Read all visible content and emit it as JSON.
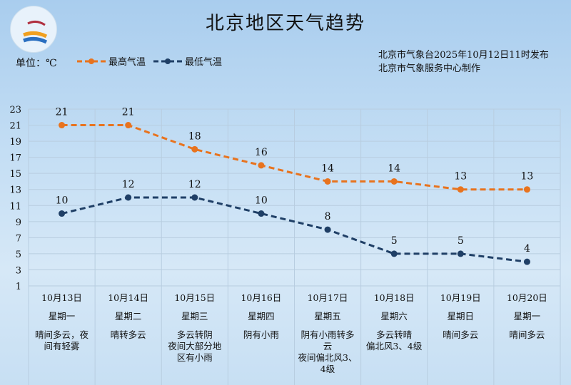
{
  "title": "北京地区天气趋势",
  "unit": "单位：℃",
  "publish": [
    "北京市气象台2025年10月12日11时发布",
    "北京市气象服务中心制作"
  ],
  "colors": {
    "high": "#e8731e",
    "low": "#1f3f66"
  },
  "chart_data": {
    "type": "line",
    "title": "北京地区天气趋势",
    "ylabel": "单位：℃",
    "ylim": [
      1,
      23
    ],
    "yticks": [
      1,
      3,
      5,
      7,
      9,
      11,
      13,
      15,
      17,
      19,
      21,
      23
    ],
    "grid": true,
    "legend": "top-left",
    "categories": [
      "10月13日",
      "10月14日",
      "10月15日",
      "10月16日",
      "10月17日",
      "10月18日",
      "10月19日",
      "10月20日"
    ],
    "series": [
      {
        "name": "最高气温",
        "values": [
          21,
          21,
          18,
          16,
          14,
          14,
          13,
          13
        ]
      },
      {
        "name": "最低气温",
        "values": [
          10,
          12,
          12,
          10,
          8,
          5,
          5,
          4
        ]
      }
    ]
  },
  "days": [
    {
      "date": "10月13日",
      "week": "星期一",
      "cond": "晴间多云，夜间有轻雾"
    },
    {
      "date": "10月14日",
      "week": "星期二",
      "cond": "晴转多云"
    },
    {
      "date": "10月15日",
      "week": "星期三",
      "cond": "多云转阴\n夜间大部分地区有小雨"
    },
    {
      "date": "10月16日",
      "week": "星期四",
      "cond": "阴有小雨"
    },
    {
      "date": "10月17日",
      "week": "星期五",
      "cond": "阴有小雨转多云\n夜间偏北风3、4级"
    },
    {
      "date": "10月18日",
      "week": "星期六",
      "cond": "多云转晴\n偏北风3、4级"
    },
    {
      "date": "10月19日",
      "week": "星期日",
      "cond": "晴间多云"
    },
    {
      "date": "10月20日",
      "week": "星期一",
      "cond": "晴间多云"
    }
  ]
}
